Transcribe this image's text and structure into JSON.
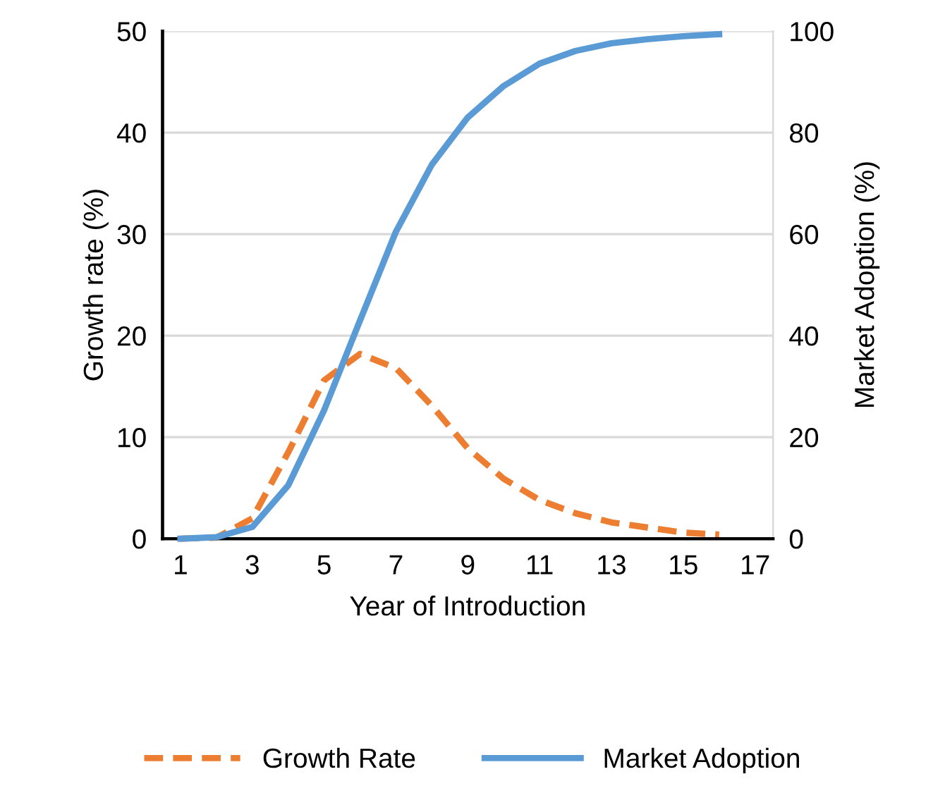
{
  "chart_data": {
    "type": "line",
    "xlabel": "Year of Introduction",
    "ylabel": "Growth rate (%)",
    "y2label": "Market Adoption (%)",
    "x": [
      1,
      2,
      3,
      4,
      5,
      6,
      7,
      8,
      9,
      10,
      11,
      12,
      13,
      14,
      15,
      16
    ],
    "series": [
      {
        "name": "Growth Rate",
        "color": "#ed7d31",
        "line_style": "dashed",
        "values": [
          0,
          0.1,
          2,
          8.5,
          15.6,
          18.2,
          16.8,
          13.1,
          8.9,
          5.9,
          3.8,
          2.5,
          1.6,
          1.1,
          0.6,
          0.4
        ]
      },
      {
        "name": "Market Adoption",
        "color": "#5b9bd5",
        "line_style": "solid",
        "axis": "y2",
        "values": [
          0,
          0.3,
          2.3,
          10.5,
          25.3,
          43,
          60.5,
          73.7,
          83,
          89.2,
          93.6,
          96.1,
          97.6,
          98.4,
          99,
          99.4
        ]
      }
    ],
    "xlim": [
      0.5,
      17.5
    ],
    "xticks": [
      1,
      3,
      5,
      7,
      9,
      11,
      13,
      15,
      17
    ],
    "ylim": [
      0,
      50
    ],
    "yticks": [
      0,
      10,
      20,
      30,
      40,
      50
    ],
    "y2lim": [
      0,
      100
    ],
    "y2ticks": [
      0,
      20,
      40,
      60,
      80,
      100
    ],
    "grid": "y",
    "legend": "bottom",
    "marker": "none"
  }
}
